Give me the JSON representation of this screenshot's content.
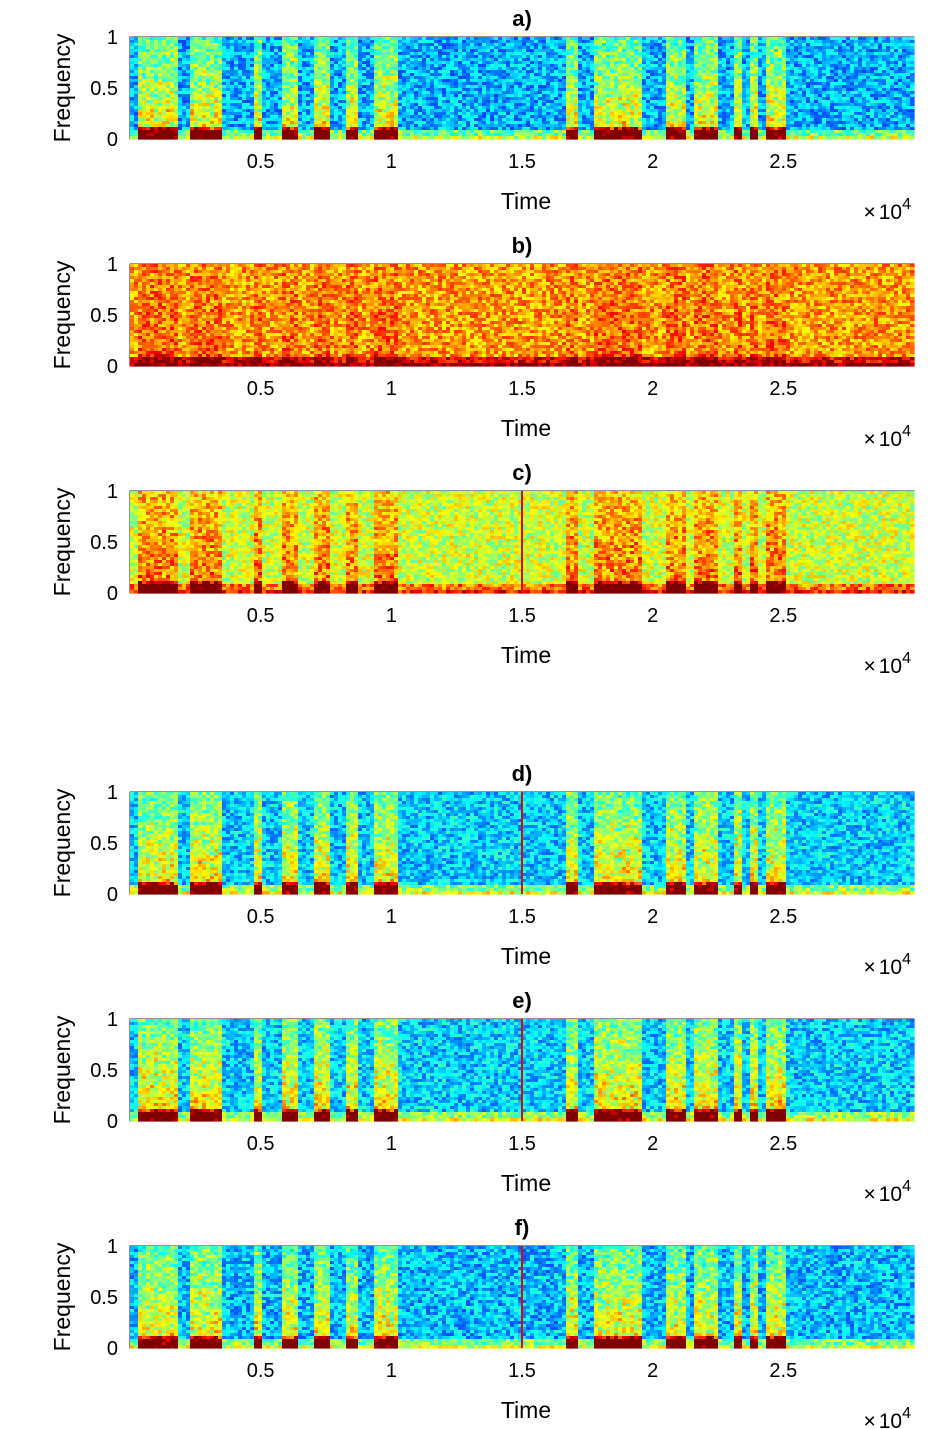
{
  "chart_data": [
    {
      "type": "heatmap",
      "title": "a)",
      "xlabel": "Time",
      "ylabel": "Frequency",
      "xlim": [
        0,
        30000
      ],
      "ylim": [
        0,
        1
      ],
      "xticks": [
        5000,
        10000,
        15000,
        20000,
        25000
      ],
      "xtick_labels": [
        "0.5",
        "1",
        "1.5",
        "2",
        "2.5"
      ],
      "yticks": [
        0,
        0.5,
        1
      ],
      "ytick_labels": [
        "0",
        "0.5",
        "1"
      ],
      "x_exponent_base": "10",
      "x_exponent": "4",
      "x_multiplier_symbol": "×",
      "colormap": "jet",
      "background_level": 0.3,
      "speech_level": 0.65,
      "artifact_line_x": null
    },
    {
      "type": "heatmap",
      "title": "b)",
      "xlabel": "Time",
      "ylabel": "Frequency",
      "xlim": [
        0,
        30000
      ],
      "ylim": [
        0,
        1
      ],
      "xticks": [
        5000,
        10000,
        15000,
        20000,
        25000
      ],
      "xtick_labels": [
        "0.5",
        "1",
        "1.5",
        "2",
        "2.5"
      ],
      "yticks": [
        0,
        0.5,
        1
      ],
      "ytick_labels": [
        "0",
        "0.5",
        "1"
      ],
      "x_exponent_base": "10",
      "x_exponent": "4",
      "x_multiplier_symbol": "×",
      "colormap": "jet",
      "background_level": 0.72,
      "speech_level": 0.12,
      "artifact_line_x": null
    },
    {
      "type": "heatmap",
      "title": "c)",
      "xlabel": "Time",
      "ylabel": "Frequency",
      "xlim": [
        0,
        30000
      ],
      "ylim": [
        0,
        1
      ],
      "xticks": [
        5000,
        10000,
        15000,
        20000,
        25000
      ],
      "xtick_labels": [
        "0.5",
        "1",
        "1.5",
        "2",
        "2.5"
      ],
      "yticks": [
        0,
        0.5,
        1
      ],
      "ytick_labels": [
        "0",
        "0.5",
        "1"
      ],
      "x_exponent_base": "10",
      "x_exponent": "4",
      "x_multiplier_symbol": "×",
      "colormap": "jet",
      "background_level": 0.58,
      "speech_level": 0.38,
      "artifact_line_x": 15000
    },
    {
      "type": "heatmap",
      "title": "d)",
      "xlabel": "Time",
      "ylabel": "Frequency",
      "xlim": [
        0,
        30000
      ],
      "ylim": [
        0,
        1
      ],
      "xticks": [
        5000,
        10000,
        15000,
        20000,
        25000
      ],
      "xtick_labels": [
        "0.5",
        "1",
        "1.5",
        "2",
        "2.5"
      ],
      "yticks": [
        0,
        0.5,
        1
      ],
      "ytick_labels": [
        "0",
        "0.5",
        "1"
      ],
      "x_exponent_base": "10",
      "x_exponent": "4",
      "x_multiplier_symbol": "×",
      "colormap": "jet",
      "background_level": 0.33,
      "speech_level": 0.62,
      "artifact_line_x": 15000
    },
    {
      "type": "heatmap",
      "title": "e)",
      "xlabel": "Time",
      "ylabel": "Frequency",
      "xlim": [
        0,
        30000
      ],
      "ylim": [
        0,
        1
      ],
      "xticks": [
        5000,
        10000,
        15000,
        20000,
        25000
      ],
      "xtick_labels": [
        "0.5",
        "1",
        "1.5",
        "2",
        "2.5"
      ],
      "yticks": [
        0,
        0.5,
        1
      ],
      "ytick_labels": [
        "0",
        "0.5",
        "1"
      ],
      "x_exponent_base": "10",
      "x_exponent": "4",
      "x_multiplier_symbol": "×",
      "colormap": "jet",
      "background_level": 0.33,
      "speech_level": 0.64,
      "artifact_line_x": 15000
    },
    {
      "type": "heatmap",
      "title": "f)",
      "xlabel": "Time",
      "ylabel": "Frequency",
      "xlim": [
        0,
        30000
      ],
      "ylim": [
        0,
        1
      ],
      "xticks": [
        5000,
        10000,
        15000,
        20000,
        25000
      ],
      "xtick_labels": [
        "0.5",
        "1",
        "1.5",
        "2",
        "2.5"
      ],
      "yticks": [
        0,
        0.5,
        1
      ],
      "ytick_labels": [
        "0",
        "0.5",
        "1"
      ],
      "x_exponent_base": "10",
      "x_exponent": "4",
      "x_multiplier_symbol": "×",
      "colormap": "jet",
      "background_level": 0.31,
      "speech_level": 0.64,
      "artifact_line_x": 15000
    }
  ],
  "speech_segments": [
    [
      300,
      1800
    ],
    [
      2300,
      3500
    ],
    [
      4700,
      5100
    ],
    [
      5800,
      6500
    ],
    [
      7100,
      7700
    ],
    [
      8300,
      8800
    ],
    [
      9300,
      10200
    ],
    [
      16700,
      17200
    ],
    [
      17800,
      19600
    ],
    [
      20500,
      21300
    ],
    [
      21600,
      22000
    ],
    [
      22100,
      22500
    ],
    [
      23100,
      23400
    ],
    [
      23700,
      24100
    ],
    [
      24300,
      25100
    ]
  ]
}
